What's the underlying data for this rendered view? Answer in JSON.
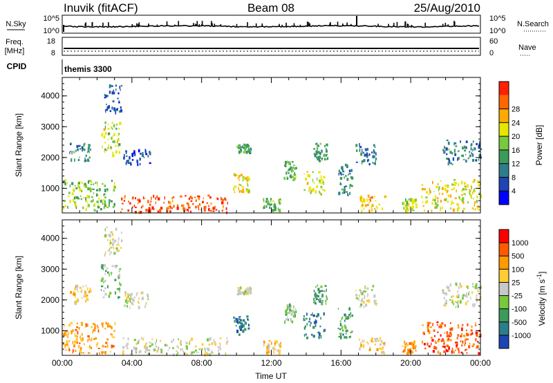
{
  "header": {
    "station": "Inuvik (fitACF)",
    "beam": "Beam 08",
    "date": "25/Aug/2010"
  },
  "summary": {
    "nsky_label": "N.Sky",
    "nsky_ticks": [
      "10^5",
      "10^0"
    ],
    "nsearch_label": "N.Search",
    "nsearch_ticks": [
      "10^5",
      "10^0"
    ],
    "freq_label": "Freq.",
    "freq_unit": "[MHz]",
    "freq_ticks": [
      "18",
      "8"
    ],
    "nave_label": "Nave",
    "nave_ticks": [
      "60",
      "0"
    ],
    "cpid_label": "CPID",
    "cpid_value": "themis 3300"
  },
  "chart_data": [
    {
      "type": "heatmap",
      "name": "power",
      "xlabel": "",
      "ylabel": "Slant Range [km]",
      "x_ticks": [
        "00:00",
        "04:00",
        "08:00",
        "12:00",
        "16:00",
        "20:00",
        "00:00"
      ],
      "x_hours": [
        0,
        24
      ],
      "y_ticks": [
        1000,
        2000,
        3000,
        4000
      ],
      "ylim": [
        200,
        4600
      ],
      "colorbar_label": "Power [dB]",
      "colorbar_range": [
        0,
        32
      ],
      "colorbar_ticks": [
        "4",
        "8",
        "12",
        "16",
        "20",
        "24",
        "28"
      ],
      "colors": [
        "#0000ff",
        "#1d46b4",
        "#2e7d8c",
        "#3c9a5a",
        "#78c840",
        "#e6e600",
        "#ffaa00",
        "#ff6600",
        "#ff2000"
      ],
      "echo_regions": [
        {
          "t0": 0.0,
          "t1": 3.0,
          "r0": 300,
          "r1": 1300,
          "level": 16
        },
        {
          "t0": 0.4,
          "t1": 1.6,
          "r0": 1900,
          "r1": 2500,
          "level": 10
        },
        {
          "t0": 2.2,
          "t1": 3.3,
          "r0": 2100,
          "r1": 3200,
          "level": 18
        },
        {
          "t0": 2.4,
          "t1": 3.4,
          "r0": 3500,
          "r1": 4400,
          "level": 6
        },
        {
          "t0": 3.3,
          "t1": 9.5,
          "r0": 250,
          "r1": 800,
          "level": 28
        },
        {
          "t0": 3.5,
          "t1": 5.0,
          "r0": 1800,
          "r1": 2300,
          "level": 6
        },
        {
          "t0": 9.8,
          "t1": 10.7,
          "r0": 900,
          "r1": 1500,
          "level": 20
        },
        {
          "t0": 10.0,
          "t1": 10.8,
          "r0": 2200,
          "r1": 2450,
          "level": 12
        },
        {
          "t0": 11.5,
          "t1": 12.5,
          "r0": 300,
          "r1": 700,
          "level": 14
        },
        {
          "t0": 12.7,
          "t1": 13.4,
          "r0": 1300,
          "r1": 1900,
          "level": 14
        },
        {
          "t0": 13.8,
          "t1": 15.0,
          "r0": 800,
          "r1": 1600,
          "level": 20
        },
        {
          "t0": 14.4,
          "t1": 15.2,
          "r0": 1900,
          "r1": 2500,
          "level": 12
        },
        {
          "t0": 15.8,
          "t1": 16.6,
          "r0": 800,
          "r1": 1800,
          "level": 10
        },
        {
          "t0": 16.8,
          "t1": 18.0,
          "r0": 1800,
          "r1": 2500,
          "level": 8
        },
        {
          "t0": 17.0,
          "t1": 18.5,
          "r0": 300,
          "r1": 800,
          "level": 22
        },
        {
          "t0": 19.5,
          "t1": 20.3,
          "r0": 300,
          "r1": 700,
          "level": 18
        },
        {
          "t0": 20.6,
          "t1": 24.0,
          "r0": 300,
          "r1": 1300,
          "level": 20
        },
        {
          "t0": 21.8,
          "t1": 24.0,
          "r0": 1800,
          "r1": 2600,
          "level": 10
        }
      ]
    },
    {
      "type": "heatmap",
      "name": "velocity",
      "xlabel": "Time UT",
      "ylabel": "Slant Range [km]",
      "x_ticks": [
        "00:00",
        "04:00",
        "08:00",
        "12:00",
        "16:00",
        "20:00",
        "00:00"
      ],
      "x_hours": [
        0,
        24
      ],
      "y_ticks": [
        1000,
        2000,
        3000,
        4000
      ],
      "ylim": [
        200,
        4600
      ],
      "colorbar_label": "Velocity [m s-1]",
      "colorbar_ticks": [
        "1000",
        "500",
        "100",
        "25",
        "-25",
        "-100",
        "-500",
        "-1000"
      ],
      "colors": [
        "#1d46b4",
        "#2e7d8c",
        "#3c9a5a",
        "#78c840",
        "#c8c8c8",
        "#ffcc33",
        "#ff9900",
        "#ff5a00",
        "#ff0000"
      ],
      "echo_regions": [
        {
          "t0": 0.0,
          "t1": 3.0,
          "r0": 300,
          "r1": 1300,
          "level": 6
        },
        {
          "t0": 0.4,
          "t1": 1.6,
          "r0": 1900,
          "r1": 2500,
          "level": 5
        },
        {
          "t0": 2.2,
          "t1": 3.3,
          "r0": 2100,
          "r1": 3200,
          "level": 3
        },
        {
          "t0": 2.4,
          "t1": 3.4,
          "r0": 3500,
          "r1": 4400,
          "level": 4
        },
        {
          "t0": 3.3,
          "t1": 9.5,
          "r0": 250,
          "r1": 800,
          "level": 4
        },
        {
          "t0": 3.5,
          "t1": 5.0,
          "r0": 1800,
          "r1": 2300,
          "level": 4
        },
        {
          "t0": 9.8,
          "t1": 10.7,
          "r0": 900,
          "r1": 1500,
          "level": 1
        },
        {
          "t0": 10.0,
          "t1": 10.8,
          "r0": 2200,
          "r1": 2450,
          "level": 4
        },
        {
          "t0": 11.5,
          "t1": 12.5,
          "r0": 300,
          "r1": 700,
          "level": 5
        },
        {
          "t0": 12.7,
          "t1": 13.4,
          "r0": 1300,
          "r1": 1900,
          "level": 3
        },
        {
          "t0": 13.8,
          "t1": 15.0,
          "r0": 800,
          "r1": 1600,
          "level": 1
        },
        {
          "t0": 14.4,
          "t1": 15.2,
          "r0": 1900,
          "r1": 2500,
          "level": 2
        },
        {
          "t0": 15.8,
          "t1": 16.6,
          "r0": 800,
          "r1": 1800,
          "level": 2
        },
        {
          "t0": 16.8,
          "t1": 18.0,
          "r0": 1800,
          "r1": 2500,
          "level": 4
        },
        {
          "t0": 17.0,
          "t1": 18.5,
          "r0": 300,
          "r1": 800,
          "level": 5
        },
        {
          "t0": 19.5,
          "t1": 20.3,
          "r0": 300,
          "r1": 700,
          "level": 6
        },
        {
          "t0": 20.6,
          "t1": 24.0,
          "r0": 300,
          "r1": 1300,
          "level": 7
        },
        {
          "t0": 21.8,
          "t1": 24.0,
          "r0": 1800,
          "r1": 2600,
          "level": 4
        }
      ]
    }
  ]
}
